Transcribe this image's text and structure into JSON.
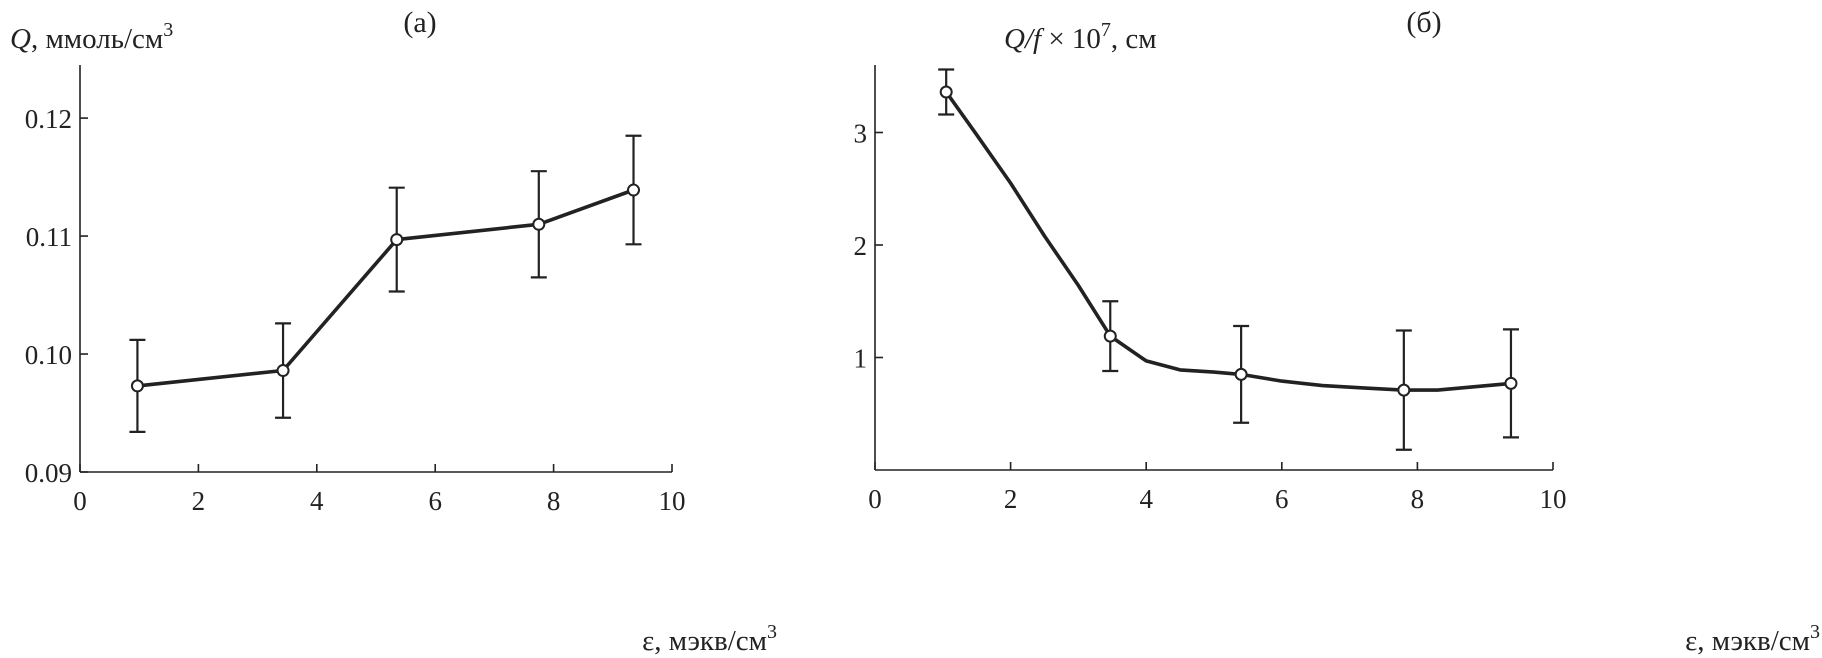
{
  "colors": {
    "ink": "#222222",
    "background": "#ffffff",
    "marker_fill": "#ffffff"
  },
  "chart_data": [
    {
      "type": "line",
      "panel_label": "(а)",
      "ylabel": {
        "symbol": "Q",
        "text": ", ммоль/см",
        "sup": "3"
      },
      "xlabel": {
        "text": "ε, мэкв/см",
        "sup": "3"
      },
      "xlim": [
        0,
        10
      ],
      "ylim": [
        0.09,
        0.1245
      ],
      "xticks": [
        0,
        2,
        4,
        6,
        8,
        10
      ],
      "xtick_labels": [
        "0",
        "2",
        "4",
        "6",
        "8",
        "10"
      ],
      "yticks": [
        0.09,
        0.1,
        0.11,
        0.12
      ],
      "ytick_labels": [
        "0.09",
        "0.10",
        "0.11",
        "0.12"
      ],
      "grid": false,
      "legend": "none",
      "series": [
        {
          "x": [
            0.97,
            3.43,
            5.35,
            7.75,
            9.35
          ],
          "y": [
            0.0973,
            0.0986,
            0.1097,
            0.111,
            0.1139
          ],
          "error": [
            0.0039,
            0.004,
            0.0044,
            0.0045,
            0.0046
          ],
          "curve": [
            [
              0.97,
              0.0973
            ],
            [
              3.43,
              0.0986
            ],
            [
              5.35,
              0.1097
            ],
            [
              7.75,
              0.111
            ],
            [
              9.35,
              0.1139
            ]
          ],
          "marker": "open-circle"
        }
      ]
    },
    {
      "type": "line",
      "panel_label": "(б)",
      "ylabel": {
        "symbol": "Q/f",
        "text": " × 10",
        "sup": "7",
        "tail": ", см"
      },
      "xlabel": {
        "text": "ε, мэкв/см",
        "sup": "3"
      },
      "xlim": [
        0,
        10
      ],
      "ylim": [
        0,
        3.6
      ],
      "xticks": [
        0,
        2,
        4,
        6,
        8,
        10
      ],
      "xtick_labels": [
        "0",
        "2",
        "4",
        "6",
        "8",
        "10"
      ],
      "yticks": [
        1,
        2,
        3
      ],
      "ytick_labels": [
        "1",
        "2",
        "3"
      ],
      "grid": false,
      "legend": "none",
      "series": [
        {
          "x": [
            1.05,
            3.47,
            5.4,
            7.8,
            9.38
          ],
          "y": [
            3.36,
            1.19,
            0.85,
            0.71,
            0.77
          ],
          "error": [
            0.2,
            0.31,
            0.43,
            0.53,
            0.48
          ],
          "curve": [
            [
              1.05,
              3.36
            ],
            [
              1.5,
              2.98
            ],
            [
              2.0,
              2.55
            ],
            [
              2.5,
              2.08
            ],
            [
              3.0,
              1.64
            ],
            [
              3.47,
              1.19
            ],
            [
              4.0,
              0.97
            ],
            [
              4.5,
              0.89
            ],
            [
              5.0,
              0.87
            ],
            [
              5.4,
              0.85
            ],
            [
              6.0,
              0.79
            ],
            [
              6.6,
              0.75
            ],
            [
              7.2,
              0.73
            ],
            [
              7.8,
              0.71
            ],
            [
              8.3,
              0.71
            ],
            [
              9.38,
              0.77
            ]
          ],
          "marker": "open-circle"
        }
      ]
    }
  ]
}
